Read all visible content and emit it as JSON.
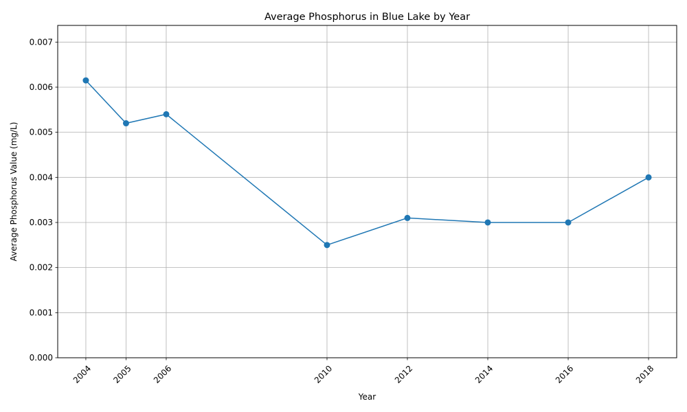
{
  "chart_data": {
    "type": "line",
    "title": "Average Phosphorus in Blue Lake by Year",
    "xlabel": "Year",
    "ylabel": "Average Phosphorus Value (mg/L)",
    "x": [
      2004,
      2005,
      2006,
      2010,
      2012,
      2014,
      2016,
      2018
    ],
    "series": [
      {
        "values": [
          0.00615,
          0.0052,
          0.0054,
          0.0025,
          0.0031,
          0.003,
          0.003,
          0.004
        ],
        "color": "#1f77b4",
        "marker": "circle"
      }
    ],
    "x_ticks": [
      "2004",
      "2005",
      "2006",
      "2010",
      "2012",
      "2014",
      "2016",
      "2018"
    ],
    "y_ticks": [
      "0.000",
      "0.001",
      "0.002",
      "0.003",
      "0.004",
      "0.005",
      "0.006",
      "0.007"
    ],
    "y_tick_values": [
      0,
      0.001,
      0.002,
      0.003,
      0.004,
      0.005,
      0.006,
      0.007
    ],
    "xlim": [
      2003.3,
      2018.7
    ],
    "ylim": [
      0,
      0.00737
    ],
    "grid": true,
    "x_tick_rotation": "45 degrees",
    "legend": "none"
  }
}
